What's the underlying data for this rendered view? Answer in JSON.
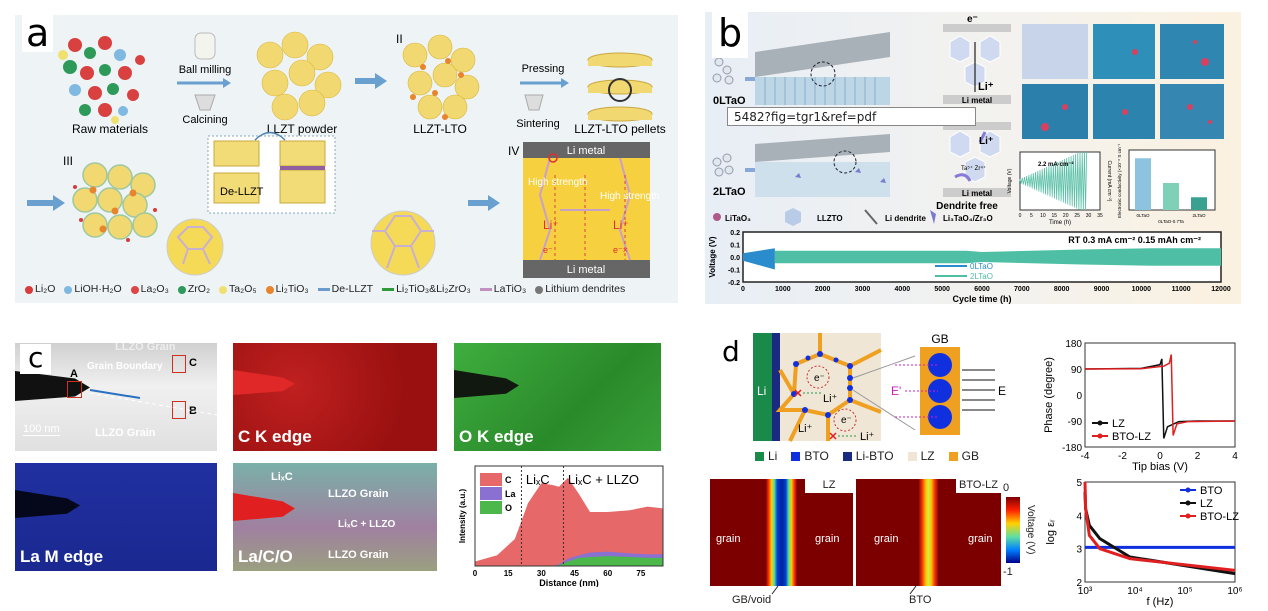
{
  "panel_a": {
    "letter": "a",
    "steps": {
      "raw": "Raw materials",
      "ball_milling": "Ball milling",
      "calcining": "Calcining",
      "powder": "LLZT powder",
      "stage2": "II",
      "composite": "LLZT-LTO",
      "pressing": "Pressing",
      "sintering": "Sintering",
      "pellets": "LLZT-LTO pellets",
      "stage3": "III",
      "stage4": "IV",
      "de_llzt": "De-LLZT",
      "li_metal_top": "Li metal",
      "li_metal_bottom": "Li metal",
      "high_strength_left": "High strength",
      "high_strength_right": "High strength",
      "li_ion_left": "Li⁺",
      "li_ion_right": "Li⁺",
      "electron_left": "e⁻",
      "electron_right": "e⁻×"
    },
    "legend": [
      "Li₂O",
      "LiOH·H₂O",
      "La₂O₃",
      "ZrO₂",
      "Ta₂O₅",
      "Li₂TiO₃",
      "De-LLZT",
      "Li₂TiO₃&Li₂ZrO₃",
      "LaTiO₃",
      "Lithium dendrites"
    ],
    "legend_colors": [
      "#d93a3a",
      "#7fb8e0",
      "#e04545",
      "#2e9a5a",
      "#f0e070",
      "#e8842a",
      "#6a9ad0",
      "#2e9a3a",
      "#c090c0",
      "#777777"
    ]
  },
  "panel_b": {
    "letter": "b",
    "sample_top": "0LTaO",
    "sample_bottom": "2LTaO",
    "electron": "e⁻",
    "li_ion": "Li⁺",
    "li_metal_top": "Li metal",
    "li_metal_bottom": "Li metal",
    "dendrite_free": "Dendrite free",
    "ta_zr": "Ta⁵⁺  Zr⁴⁺",
    "url_overlay": "5482?fig=tgr1&ref=pdf",
    "legend": [
      "LiTaO₃",
      "LLZTO",
      "Li dendrite",
      "Li₃TaO₄/Zr₃O"
    ],
    "inset_annotation": "2.2 mA·cm⁻²"
  },
  "panel_c": {
    "letter": "c",
    "tiles": {
      "tem_grain_top": "LLZO Grain",
      "grain_boundary": "Grain Boundary",
      "scale": "100 nm",
      "tem_grain_bottom": "LLZO Grain",
      "marker_a": "A",
      "marker_b": "B",
      "marker_c": "C",
      "c_k": "C K edge",
      "o_k": "O K edge",
      "la_m": "La M edge",
      "overlay": "La/C/O",
      "lixc": "LiₓC",
      "overlay_grain_top": "LLZO Grain",
      "overlay_mix": "LiₓC + LLZO",
      "overlay_grain_bottom": "LLZO Grain"
    }
  },
  "panel_d": {
    "letter": "d",
    "schematic": {
      "li": "Li",
      "electron1": "e⁻",
      "electron2": "e⁻",
      "li_ion1": "Li⁺",
      "li_ion2": "Li⁺",
      "li_ion3": "Li⁺",
      "gb": "GB",
      "e_prime": "E'",
      "e_field": "E"
    },
    "legend": [
      "Li",
      "BTO",
      "Li-BTO",
      "LZ",
      "GB"
    ],
    "legend_colors": [
      "#1a8a4a",
      "#1030e0",
      "#1a2a80",
      "#efe6d6",
      "#f0a020"
    ],
    "heatmaps": {
      "left_tag": "LZ",
      "right_tag": "BTO-LZ",
      "grain": "grain",
      "left_arrow": "GB/void",
      "right_arrow": "BTO",
      "cbar_label": "Voltage (V)",
      "cbar_max": "0",
      "cbar_min": "-1"
    }
  },
  "chart_data": [
    {
      "id": "b-cycling",
      "type": "area",
      "xlabel": "Cycle time (h)",
      "ylabel": "Voltage (V)",
      "xlim": [
        0,
        12000
      ],
      "ylim": [
        -0.2,
        0.2
      ],
      "xticks": [
        0,
        1000,
        2000,
        3000,
        4000,
        5000,
        6000,
        7000,
        8000,
        9000,
        10000,
        11000,
        12000
      ],
      "yticks": [
        "0.2",
        "0.1",
        "0.0",
        "-0.1",
        "-0.2"
      ],
      "annotation": "RT  0.3 mA cm⁻²  0.15 mAh cm⁻²",
      "series": [
        {
          "name": "0LTaO",
          "color": "#2a8ccc",
          "x": [
            0,
            800
          ],
          "upper": [
            0.03,
            0.07
          ],
          "lower": [
            -0.03,
            -0.1
          ]
        },
        {
          "name": "2LTaO",
          "color": "#4ebfa4",
          "x": [
            800,
            5600,
            6000,
            8500,
            10300,
            12000
          ],
          "upper": [
            0.05,
            0.05,
            0.04,
            0.06,
            0.07,
            0.07
          ],
          "lower": [
            -0.05,
            -0.05,
            -0.04,
            -0.06,
            -0.07,
            -0.07
          ]
        }
      ]
    },
    {
      "id": "b-cci",
      "type": "line",
      "xlabel": "Time (h)",
      "ylabel": "Voltage (V)",
      "y2label": "Current (mA cm⁻²)",
      "xlim": [
        0,
        35
      ],
      "ylim": [
        -1.0,
        1.0
      ],
      "xticks": [
        "0",
        "5",
        "10",
        "15",
        "20",
        "25",
        "30",
        "35"
      ]
    },
    {
      "id": "b-conductivity",
      "type": "bar",
      "ylabel": "Electronic conductivity (×10⁻⁸ S cm⁻¹)",
      "categories": [
        "0LTaO",
        "0LTaO-0.7Ta",
        "2LTaO"
      ],
      "values": [
        3.45,
        1.8,
        0.85
      ],
      "ylim": [
        0,
        4
      ]
    },
    {
      "id": "c-profile",
      "type": "area",
      "xlabel": "Distance (nm)",
      "ylabel": "Intensity (a.u.)",
      "xlim": [
        0,
        85
      ],
      "xticks": [
        "0",
        "15",
        "30",
        "45",
        "60",
        "75"
      ],
      "region_labels": [
        "LiₓC",
        "LiₓC + LLZO"
      ],
      "dividers": [
        21,
        40
      ],
      "legend": "top-left",
      "x": [
        0,
        10,
        18,
        24,
        30,
        35,
        38,
        42,
        47,
        52,
        60,
        70,
        78,
        85
      ],
      "series": [
        {
          "name": "C",
          "color": "#e76868",
          "values": [
            0.05,
            0.12,
            0.3,
            0.7,
            0.92,
            0.9,
            0.88,
            0.98,
            0.8,
            0.6,
            0.6,
            0.62,
            0.66,
            0.64
          ]
        },
        {
          "name": "La",
          "color": "#8a70d0",
          "values": [
            0,
            0,
            0,
            0,
            0,
            0,
            0.02,
            0.08,
            0.12,
            0.15,
            0.16,
            0.14,
            0.13,
            0.13
          ]
        },
        {
          "name": "O",
          "color": "#4cb84c",
          "values": [
            0,
            0,
            0,
            0,
            0,
            0,
            0.01,
            0.05,
            0.09,
            0.1,
            0.11,
            0.1,
            0.09,
            0.09
          ]
        }
      ]
    },
    {
      "id": "d-phase",
      "type": "line",
      "xlabel": "Tip bias (V)",
      "ylabel": "Phase (degree)",
      "xlim": [
        -4,
        4
      ],
      "ylim": [
        -180,
        180
      ],
      "xticks": [
        "-4",
        "-2",
        "0",
        "2",
        "4"
      ],
      "yticks": [
        "180",
        "90",
        "0",
        "-90",
        "-180"
      ],
      "legend": "bottom-left",
      "series": [
        {
          "name": "LZ",
          "color": "#111111",
          "x": [
            -4,
            -1,
            0,
            0.1,
            0.2,
            0.4,
            1,
            2,
            4
          ],
          "y": [
            90,
            92,
            105,
            125,
            -150,
            -110,
            -92,
            -90,
            -90
          ]
        },
        {
          "name": "BTO-LZ",
          "color": "#e02020",
          "x": [
            -4,
            -1,
            0.2,
            0.5,
            0.6,
            0.7,
            0.9,
            1.5,
            4
          ],
          "y": [
            90,
            91,
            100,
            110,
            140,
            -140,
            -100,
            -92,
            -90
          ]
        }
      ]
    },
    {
      "id": "d-permittivity",
      "type": "line",
      "xlabel": "f (Hz)",
      "ylabel": "log εᵣ",
      "xscale": "log",
      "xlim": [
        1000,
        1000000
      ],
      "ylim": [
        2,
        5
      ],
      "xticks": [
        "10³",
        "10⁴",
        "10⁵",
        "10⁶"
      ],
      "yticks": [
        "5",
        "4",
        "3",
        "2"
      ],
      "legend": "top-right",
      "series": [
        {
          "name": "BTO",
          "color": "#1030e0",
          "x": [
            1000,
            1000000
          ],
          "y": [
            3.04,
            3.04
          ]
        },
        {
          "name": "LZ",
          "color": "#111111",
          "x": [
            1000,
            5000,
            30000,
            100000,
            300000,
            1000000
          ],
          "y": [
            4.7,
            4.2,
            3.7,
            3.3,
            2.75,
            2.25
          ]
        },
        {
          "name": "BTO-LZ",
          "color": "#e02020",
          "x": [
            1000,
            5000,
            30000,
            100000,
            300000,
            1000000
          ],
          "y": [
            5.0,
            4.2,
            3.4,
            3.0,
            2.7,
            2.35
          ]
        }
      ]
    }
  ]
}
